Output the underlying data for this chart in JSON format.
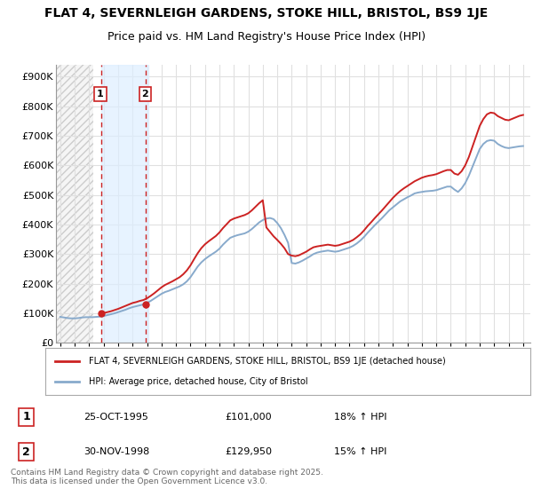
{
  "title": "FLAT 4, SEVERNLEIGH GARDENS, STOKE HILL, BRISTOL, BS9 1JE",
  "subtitle": "Price paid vs. HM Land Registry's House Price Index (HPI)",
  "title_fontsize": 10,
  "subtitle_fontsize": 9,
  "ylabel_ticks": [
    "£0",
    "£100K",
    "£200K",
    "£300K",
    "£400K",
    "£500K",
    "£600K",
    "£700K",
    "£800K",
    "£900K"
  ],
  "ytick_values": [
    0,
    100000,
    200000,
    300000,
    400000,
    500000,
    600000,
    700000,
    800000,
    900000
  ],
  "ylim": [
    0,
    940000
  ],
  "xlim_start": 1992.7,
  "xlim_end": 2025.5,
  "background_color": "#ffffff",
  "plot_bg_color": "#ffffff",
  "grid_color": "#e0e0e0",
  "red_color": "#cc2222",
  "blue_color": "#88aacc",
  "hatch_fill_color": "#f0f0f0",
  "span_color": "#ddeeff",
  "transaction1_x": 1995.82,
  "transaction1_y": 101000,
  "transaction2_x": 1998.92,
  "transaction2_y": 129950,
  "legend_label1": "FLAT 4, SEVERNLEIGH GARDENS, STOKE HILL, BRISTOL, BS9 1JE (detached house)",
  "legend_label2": "HPI: Average price, detached house, City of Bristol",
  "footnote": "Contains HM Land Registry data © Crown copyright and database right 2025.\nThis data is licensed under the Open Government Licence v3.0.",
  "sale1_label": "1",
  "sale1_date": "25-OCT-1995",
  "sale1_price": "£101,000",
  "sale1_hpi": "18% ↑ HPI",
  "sale2_label": "2",
  "sale2_date": "30-NOV-1998",
  "sale2_price": "£129,950",
  "sale2_hpi": "15% ↑ HPI",
  "hpi_data_x": [
    1993.0,
    1993.25,
    1993.5,
    1993.75,
    1994.0,
    1994.25,
    1994.5,
    1994.75,
    1995.0,
    1995.25,
    1995.5,
    1995.75,
    1996.0,
    1996.25,
    1996.5,
    1996.75,
    1997.0,
    1997.25,
    1997.5,
    1997.75,
    1998.0,
    1998.25,
    1998.5,
    1998.75,
    1999.0,
    1999.25,
    1999.5,
    1999.75,
    2000.0,
    2000.25,
    2000.5,
    2000.75,
    2001.0,
    2001.25,
    2001.5,
    2001.75,
    2002.0,
    2002.25,
    2002.5,
    2002.75,
    2003.0,
    2003.25,
    2003.5,
    2003.75,
    2004.0,
    2004.25,
    2004.5,
    2004.75,
    2005.0,
    2005.25,
    2005.5,
    2005.75,
    2006.0,
    2006.25,
    2006.5,
    2006.75,
    2007.0,
    2007.25,
    2007.5,
    2007.75,
    2008.0,
    2008.25,
    2008.5,
    2008.75,
    2009.0,
    2009.25,
    2009.5,
    2009.75,
    2010.0,
    2010.25,
    2010.5,
    2010.75,
    2011.0,
    2011.25,
    2011.5,
    2011.75,
    2012.0,
    2012.25,
    2012.5,
    2012.75,
    2013.0,
    2013.25,
    2013.5,
    2013.75,
    2014.0,
    2014.25,
    2014.5,
    2014.75,
    2015.0,
    2015.25,
    2015.5,
    2015.75,
    2016.0,
    2016.25,
    2016.5,
    2016.75,
    2017.0,
    2017.25,
    2017.5,
    2017.75,
    2018.0,
    2018.25,
    2018.5,
    2018.75,
    2019.0,
    2019.25,
    2019.5,
    2019.75,
    2020.0,
    2020.25,
    2020.5,
    2020.75,
    2021.0,
    2021.25,
    2021.5,
    2021.75,
    2022.0,
    2022.25,
    2022.5,
    2022.75,
    2023.0,
    2023.25,
    2023.5,
    2023.75,
    2024.0,
    2024.25,
    2024.5,
    2024.75,
    2025.0
  ],
  "hpi_data_y": [
    88000,
    86000,
    84000,
    83000,
    83000,
    84000,
    86000,
    87000,
    87000,
    87000,
    88000,
    89000,
    91000,
    94000,
    97000,
    100000,
    104000,
    108000,
    112000,
    117000,
    121000,
    124000,
    127000,
    130000,
    135000,
    142000,
    150000,
    158000,
    166000,
    172000,
    176000,
    181000,
    186000,
    191000,
    198000,
    208000,
    222000,
    240000,
    258000,
    272000,
    283000,
    292000,
    300000,
    308000,
    318000,
    332000,
    344000,
    355000,
    360000,
    364000,
    367000,
    370000,
    376000,
    385000,
    396000,
    407000,
    415000,
    420000,
    422000,
    418000,
    405000,
    388000,
    365000,
    338000,
    270000,
    268000,
    272000,
    278000,
    285000,
    292000,
    300000,
    305000,
    308000,
    310000,
    312000,
    310000,
    308000,
    310000,
    314000,
    318000,
    322000,
    328000,
    336000,
    346000,
    358000,
    372000,
    385000,
    398000,
    410000,
    422000,
    435000,
    448000,
    458000,
    468000,
    478000,
    485000,
    492000,
    498000,
    505000,
    508000,
    510000,
    512000,
    513000,
    514000,
    516000,
    520000,
    524000,
    528000,
    528000,
    518000,
    510000,
    522000,
    540000,
    565000,
    595000,
    625000,
    655000,
    672000,
    682000,
    685000,
    683000,
    672000,
    665000,
    660000,
    658000,
    660000,
    662000,
    664000,
    665000
  ],
  "price_data_x": [
    1995.75,
    1996.0,
    1996.25,
    1996.5,
    1996.75,
    1997.0,
    1997.25,
    1997.5,
    1997.75,
    1998.0,
    1998.25,
    1998.5,
    1998.75,
    1999.0,
    1999.25,
    1999.5,
    1999.75,
    2000.0,
    2000.25,
    2000.5,
    2000.75,
    2001.0,
    2001.25,
    2001.5,
    2001.75,
    2002.0,
    2002.25,
    2002.5,
    2002.75,
    2003.0,
    2003.25,
    2003.5,
    2003.75,
    2004.0,
    2004.25,
    2004.5,
    2004.75,
    2005.0,
    2005.25,
    2005.5,
    2005.75,
    2006.0,
    2006.25,
    2006.5,
    2006.75,
    2007.0,
    2007.25,
    2007.5,
    2007.75,
    2008.0,
    2008.25,
    2008.5,
    2008.75,
    2009.0,
    2009.25,
    2009.5,
    2009.75,
    2010.0,
    2010.25,
    2010.5,
    2010.75,
    2011.0,
    2011.25,
    2011.5,
    2011.75,
    2012.0,
    2012.25,
    2012.5,
    2012.75,
    2013.0,
    2013.25,
    2013.5,
    2013.75,
    2014.0,
    2014.25,
    2014.5,
    2014.75,
    2015.0,
    2015.25,
    2015.5,
    2015.75,
    2016.0,
    2016.25,
    2016.5,
    2016.75,
    2017.0,
    2017.25,
    2017.5,
    2017.75,
    2018.0,
    2018.25,
    2018.5,
    2018.75,
    2019.0,
    2019.25,
    2019.5,
    2019.75,
    2020.0,
    2020.25,
    2020.5,
    2020.75,
    2021.0,
    2021.25,
    2021.5,
    2021.75,
    2022.0,
    2022.25,
    2022.5,
    2022.75,
    2023.0,
    2023.25,
    2023.5,
    2023.75,
    2024.0,
    2024.25,
    2024.5,
    2024.75,
    2025.0
  ],
  "price_data_y": [
    101000,
    101000,
    104000,
    107000,
    111000,
    115000,
    120000,
    125000,
    130000,
    135000,
    138000,
    142000,
    145000,
    151000,
    159000,
    168000,
    178000,
    188000,
    196000,
    202000,
    208000,
    215000,
    222000,
    232000,
    245000,
    262000,
    283000,
    303000,
    320000,
    333000,
    343000,
    352000,
    361000,
    373000,
    388000,
    401000,
    414000,
    420000,
    424000,
    428000,
    432000,
    438000,
    448000,
    460000,
    472000,
    482000,
    390000,
    375000,
    360000,
    348000,
    335000,
    320000,
    300000,
    295000,
    293000,
    296000,
    302000,
    308000,
    316000,
    323000,
    326000,
    328000,
    330000,
    332000,
    330000,
    328000,
    330000,
    334000,
    338000,
    342000,
    348000,
    357000,
    367000,
    380000,
    395000,
    408000,
    422000,
    435000,
    448000,
    462000,
    476000,
    490000,
    502000,
    513000,
    522000,
    530000,
    538000,
    546000,
    552000,
    558000,
    562000,
    565000,
    567000,
    570000,
    575000,
    580000,
    584000,
    584000,
    572000,
    568000,
    580000,
    600000,
    628000,
    663000,
    698000,
    733000,
    756000,
    772000,
    778000,
    776000,
    766000,
    760000,
    754000,
    752000,
    757000,
    762000,
    767000,
    770000
  ]
}
